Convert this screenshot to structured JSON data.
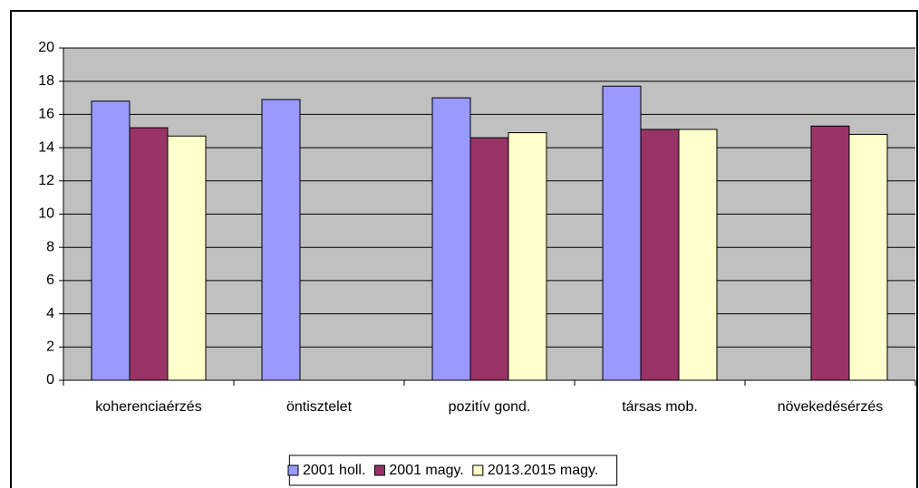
{
  "chart_data": {
    "type": "bar",
    "categories": [
      "koherenciaérzés",
      "öntisztelet",
      "pozitív gond.",
      "társas mob.",
      "növekedésérzés"
    ],
    "series": [
      {
        "name": "2001 holl.",
        "color": "#9999ff",
        "values": [
          16.8,
          16.9,
          17.0,
          17.7,
          null
        ]
      },
      {
        "name": "2001 magy.",
        "color": "#993366",
        "values": [
          15.2,
          null,
          14.6,
          15.1,
          15.3
        ]
      },
      {
        "name": "2013.2015 magy.",
        "color": "#ffffcc",
        "values": [
          14.7,
          null,
          14.9,
          15.1,
          14.8
        ]
      }
    ],
    "ylim": [
      0,
      20
    ],
    "yticks": [
      0,
      2,
      4,
      6,
      8,
      10,
      12,
      14,
      16,
      18,
      20
    ],
    "grid": true,
    "legend": "bottom"
  }
}
